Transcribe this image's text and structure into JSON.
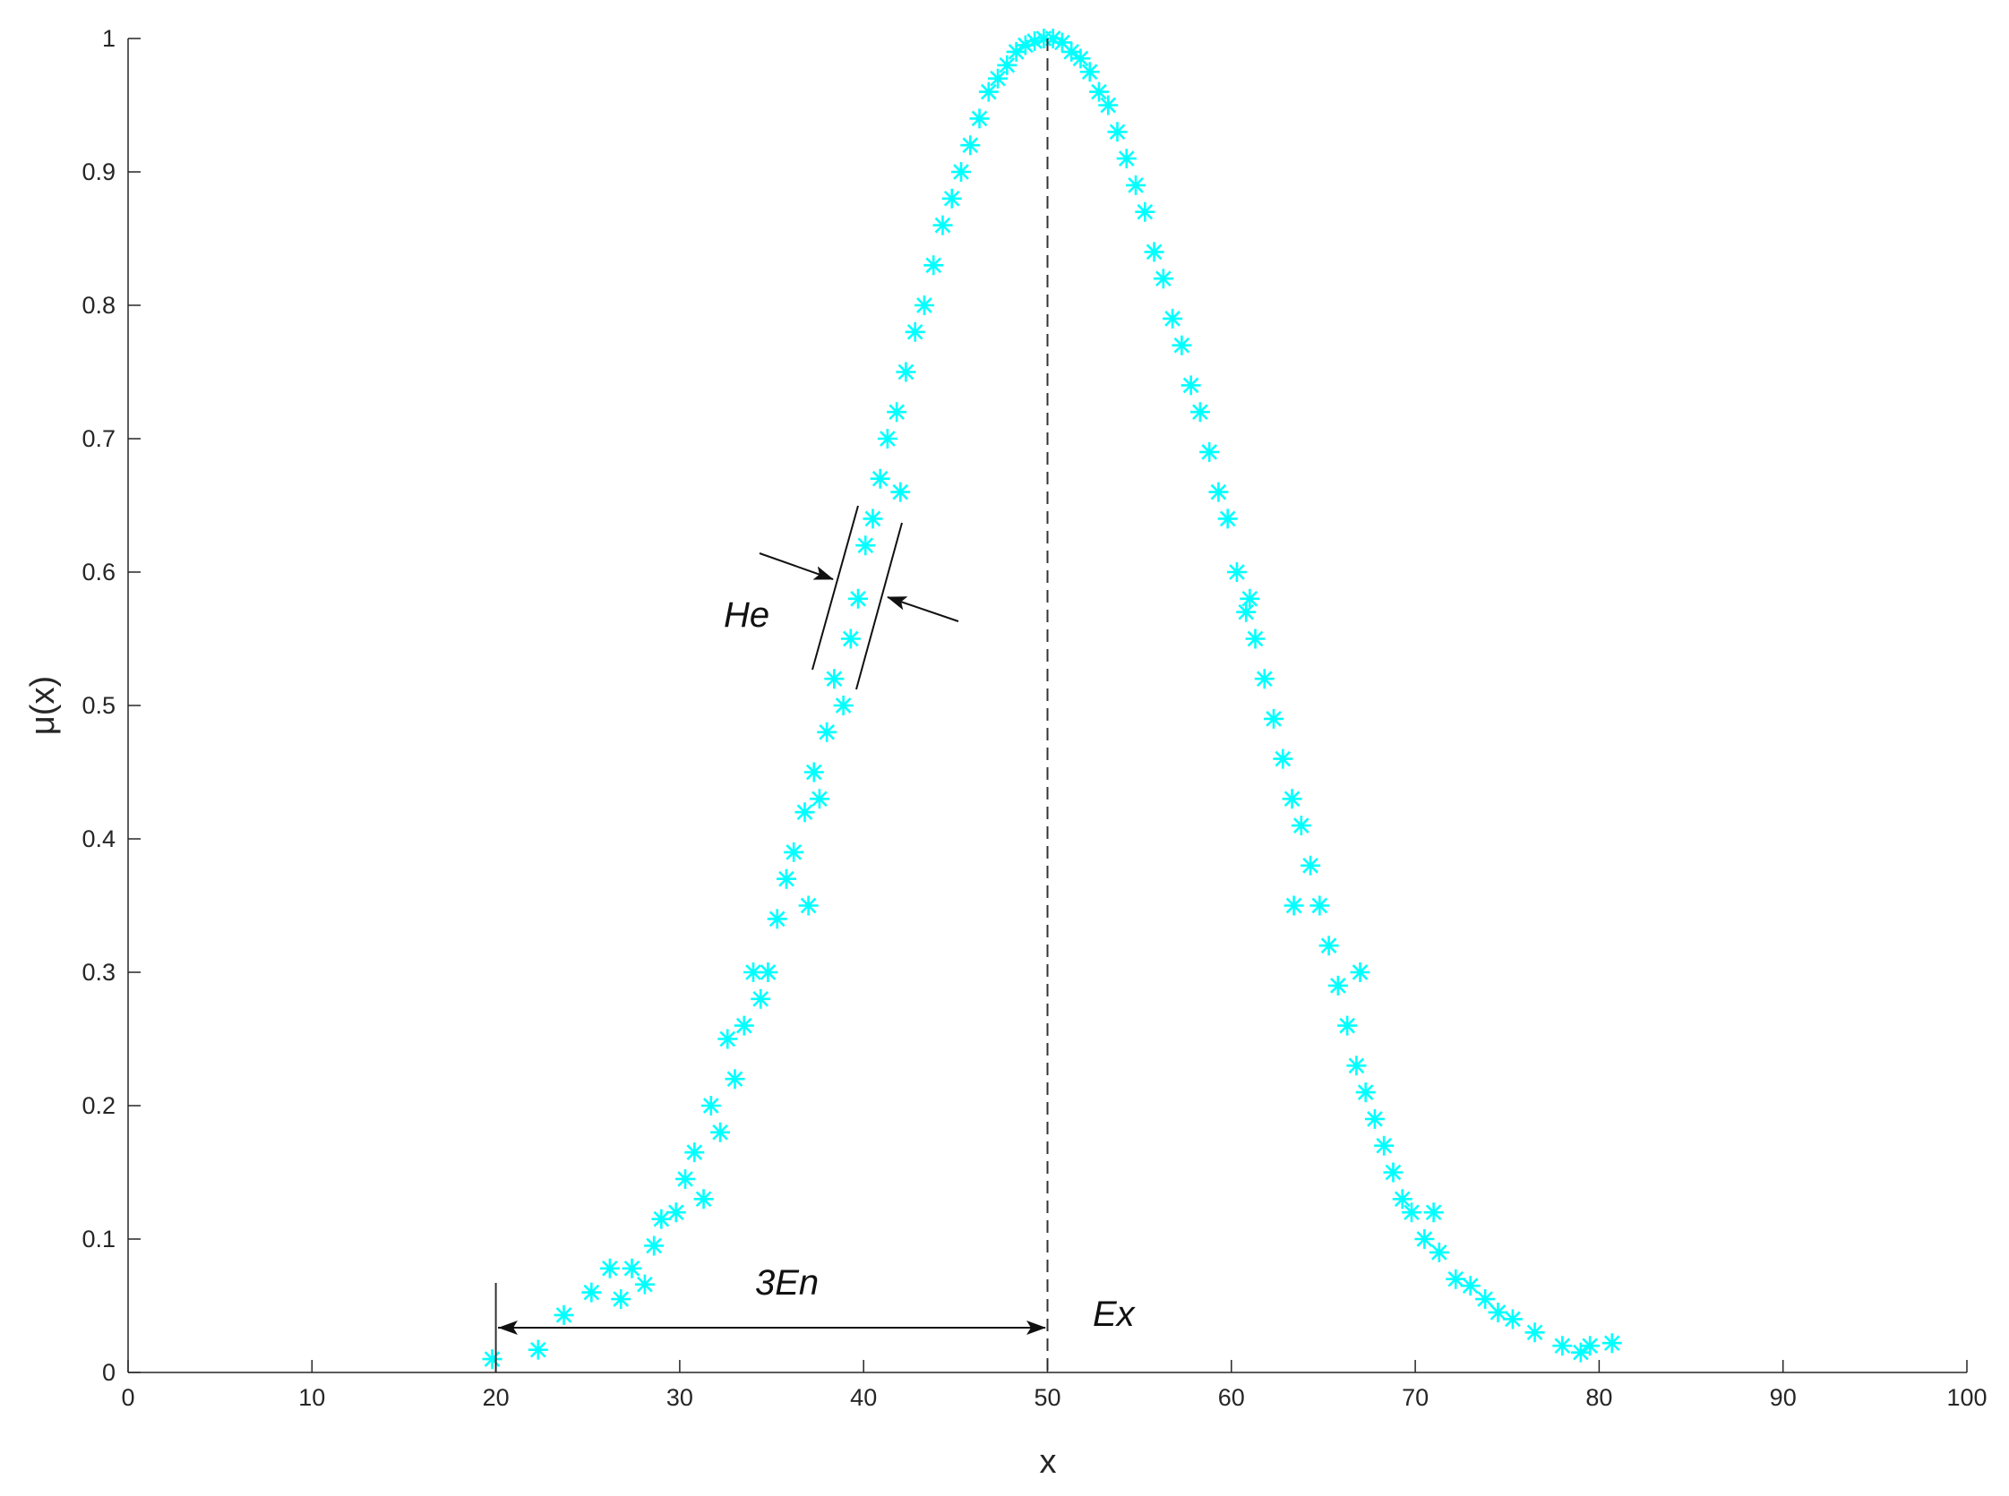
{
  "chart_data": {
    "type": "scatter",
    "xlabel": "x",
    "ylabel": "μ(x)",
    "annotations": [
      "He",
      "3En",
      "Ex"
    ],
    "xlim": [
      0,
      100
    ],
    "xticks": [
      0,
      10,
      20,
      30,
      40,
      50,
      60,
      70,
      80,
      90,
      100
    ],
    "ylim": [
      0,
      1
    ],
    "yticks": [
      0,
      0.1,
      0.2,
      0.3,
      0.4,
      0.5,
      0.6,
      0.7,
      0.8,
      0.9,
      1
    ],
    "color": "#00ffff",
    "x": [
      19.8,
      22.3,
      23.7,
      25.2,
      26.2,
      26.8,
      27.4,
      28.1,
      28.6,
      29,
      29.8,
      30.3,
      30.8,
      31.3,
      31.7,
      32.2,
      32.6,
      33,
      33.5,
      34,
      34.4,
      34.8,
      35.3,
      35.8,
      36.2,
      36.8,
      37.3,
      37.6,
      38,
      38.4,
      38.9,
      39.3,
      39.7,
      40.1,
      40.5,
      40.9,
      41.3,
      41.8,
      42.3,
      42.8,
      43.3,
      43.8,
      44.3,
      44.8,
      45.3,
      45.8,
      46.3,
      46.8,
      47.3,
      47.8,
      48.3,
      48.8,
      49.3,
      49.8,
      50.3,
      50.8,
      51.3,
      51.8,
      52.3,
      52.8,
      53.3,
      53.8,
      54.3,
      54.8,
      55.3,
      55.8,
      56.3,
      56.8,
      57.3,
      57.8,
      58.3,
      58.8,
      59.3,
      59.8,
      60.3,
      60.8,
      61.3,
      61.8,
      62.3,
      62.8,
      63.3,
      63.8,
      64.3,
      64.8,
      65.3,
      65.8,
      66.3,
      66.8,
      67.3,
      67.8,
      68.3,
      68.8,
      69.3,
      69.8,
      70.5,
      71.3,
      72.2,
      73,
      73.8,
      74.5,
      75.3,
      76.5,
      78,
      79,
      79.5,
      80.7,
      63.4,
      61,
      67,
      42,
      37,
      71
    ],
    "values": [
      0.01,
      0.017,
      0.043,
      0.06,
      0.078,
      0.055,
      0.078,
      0.066,
      0.095,
      0.115,
      0.12,
      0.145,
      0.165,
      0.13,
      0.2,
      0.18,
      0.25,
      0.22,
      0.26,
      0.3,
      0.28,
      0.3,
      0.34,
      0.37,
      0.39,
      0.42,
      0.45,
      0.43,
      0.48,
      0.52,
      0.5,
      0.55,
      0.58,
      0.62,
      0.64,
      0.67,
      0.7,
      0.72,
      0.75,
      0.78,
      0.8,
      0.83,
      0.86,
      0.88,
      0.9,
      0.92,
      0.94,
      0.96,
      0.97,
      0.98,
      0.99,
      0.995,
      0.998,
      1,
      1,
      0.997,
      0.99,
      0.985,
      0.975,
      0.96,
      0.95,
      0.93,
      0.91,
      0.89,
      0.87,
      0.84,
      0.82,
      0.79,
      0.77,
      0.74,
      0.72,
      0.69,
      0.66,
      0.64,
      0.6,
      0.57,
      0.55,
      0.52,
      0.49,
      0.46,
      0.43,
      0.41,
      0.38,
      0.35,
      0.32,
      0.29,
      0.26,
      0.23,
      0.21,
      0.19,
      0.17,
      0.15,
      0.13,
      0.12,
      0.1,
      0.09,
      0.07,
      0.065,
      0.055,
      0.045,
      0.04,
      0.03,
      0.02,
      0.015,
      0.02,
      0.022,
      0.35,
      0.58,
      0.3,
      0.66,
      0.35,
      0.12
    ]
  }
}
